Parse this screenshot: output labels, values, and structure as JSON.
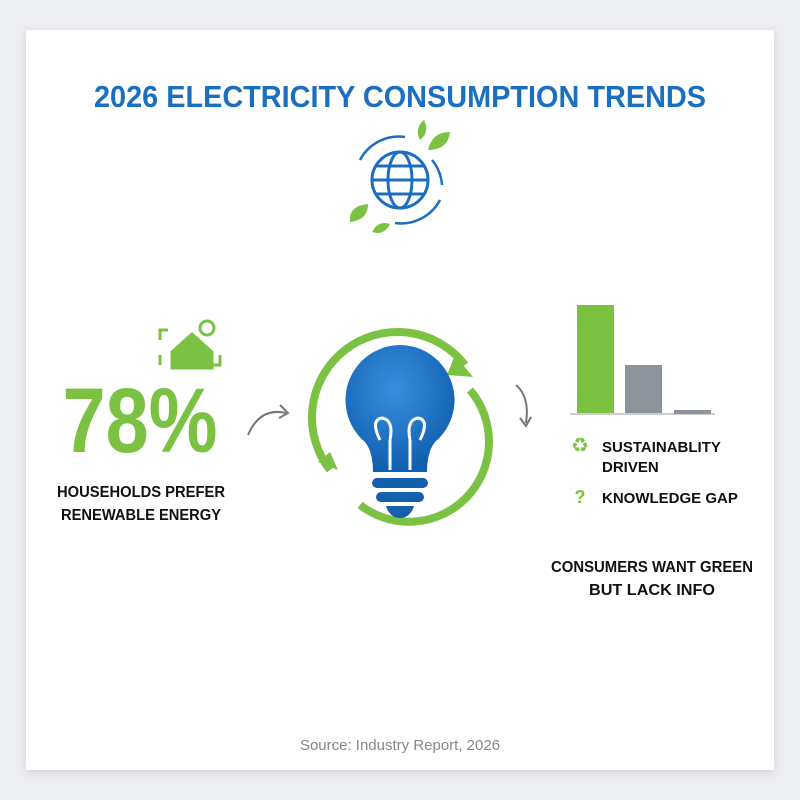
{
  "title": "2026 ELECTRICITY CONSUMPTION TRENDS",
  "stat": {
    "value": "78%",
    "label": [
      "HOUSEHOLDS PREFER",
      "RENEWABLE ENERGY"
    ]
  },
  "legend": [
    {
      "label": [
        "SUSTAINABLITY",
        "DRIVEN"
      ]
    },
    {
      "label": [
        "KNOWLEDGE GAP"
      ]
    }
  ],
  "conclusion": [
    "CONSUMERS WANT GREEN",
    "BUT LACK INFO"
  ],
  "source": "Source: Industry Report, 2026"
}
